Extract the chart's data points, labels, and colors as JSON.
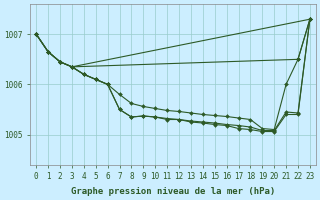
{
  "bg_color": "#cceeff",
  "grid_color": "#99cccc",
  "line_color": "#2d5a27",
  "marker_color": "#2d5a27",
  "xlabel": "Graphe pression niveau de la mer (hPa)",
  "xlabel_fontsize": 6.5,
  "tick_fontsize": 5.5,
  "ylabel_ticks": [
    1005,
    1006,
    1007
  ],
  "xlim": [
    -0.5,
    23.5
  ],
  "ylim": [
    1004.4,
    1007.6
  ],
  "series": [
    {
      "x": [
        0,
        1,
        2,
        3,
        4,
        5,
        6,
        7,
        8,
        9,
        10,
        11,
        12,
        13,
        14,
        15,
        16,
        17,
        18,
        19,
        20,
        21,
        22,
        23
      ],
      "y": [
        1007.0,
        1006.65,
        1006.45,
        1006.35,
        null,
        null,
        null,
        null,
        null,
        null,
        null,
        null,
        null,
        null,
        null,
        null,
        null,
        null,
        null,
        null,
        null,
        null,
        1006.5,
        1007.3
      ]
    },
    {
      "x": [
        0,
        1,
        2,
        3,
        4,
        5,
        6,
        7,
        8,
        9,
        10,
        11,
        12,
        13,
        14,
        15,
        16,
        17,
        18,
        19,
        20,
        21,
        22,
        23
      ],
      "y": [
        1007.0,
        1006.65,
        1006.45,
        1006.35,
        1006.2,
        1006.1,
        1006.0,
        1005.8,
        1005.62,
        1005.56,
        1005.52,
        1005.48,
        1005.46,
        1005.43,
        1005.4,
        1005.38,
        1005.36,
        1005.33,
        1005.3,
        1005.12,
        1005.1,
        1006.0,
        1006.5,
        1007.3
      ]
    },
    {
      "x": [
        0,
        1,
        2,
        3,
        4,
        5,
        6,
        7,
        8,
        9,
        10,
        11,
        12,
        13,
        14,
        15,
        16,
        17,
        18,
        19,
        20,
        21,
        22,
        23
      ],
      "y": [
        1007.0,
        1006.65,
        1006.45,
        1006.35,
        1006.2,
        1006.1,
        1006.0,
        1005.5,
        1005.35,
        1005.37,
        1005.35,
        1005.32,
        1005.3,
        1005.27,
        1005.25,
        1005.23,
        1005.2,
        1005.18,
        1005.15,
        1005.08,
        1005.08,
        1005.45,
        1005.43,
        1007.3
      ]
    },
    {
      "x": [
        0,
        1,
        2,
        3,
        4,
        5,
        6,
        7,
        8,
        9,
        10,
        11,
        12,
        13,
        14,
        15,
        16,
        17,
        18,
        19,
        20,
        21,
        22,
        23
      ],
      "y": [
        1007.0,
        1006.65,
        1006.45,
        1006.35,
        1006.2,
        1006.1,
        1006.0,
        1005.5,
        1005.35,
        1005.37,
        1005.35,
        1005.3,
        1005.3,
        1005.25,
        1005.23,
        1005.2,
        1005.18,
        1005.12,
        1005.1,
        1005.06,
        1005.06,
        1005.4,
        1005.4,
        1007.3
      ]
    },
    {
      "x": [
        3,
        23
      ],
      "y": [
        1006.35,
        1007.3
      ]
    }
  ]
}
